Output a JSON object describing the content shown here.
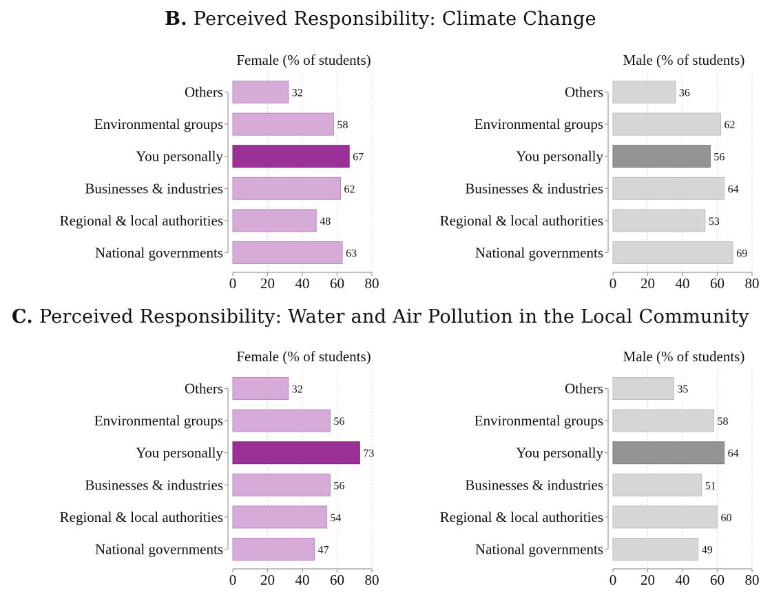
{
  "sections": [
    {
      "letter": "B.",
      "title": "Perceived Responsibility: Climate Change"
    },
    {
      "letter": "C.",
      "title": "Perceived Responsibility: Water and Air Pollution in the Local Community"
    }
  ],
  "colors": {
    "female_bar": "#d7abd8",
    "female_edge": "#bd86c0",
    "female_highlight": "#9b3197",
    "female_highlight_edge": "#7d1f7a",
    "male_bar": "#d6d6d6",
    "male_edge": "#bdbdbd",
    "male_highlight": "#949494",
    "male_highlight_edge": "#7a7a7a",
    "grid": "#d9d9d9",
    "axis": "#9a9a9a"
  },
  "chart_data": [
    {
      "type": "bar",
      "orientation": "horizontal",
      "section": "B",
      "title": "Female (% of students)",
      "group": "female",
      "categories": [
        "Others",
        "Environmental groups",
        "You personally",
        "Businesses & industries",
        "Regional & local authorities",
        "National governments"
      ],
      "values": [
        32,
        58,
        67,
        62,
        48,
        63
      ],
      "highlight_index": 2,
      "xlim": [
        0,
        80
      ],
      "xticks": [
        0,
        20,
        40,
        60,
        80
      ]
    },
    {
      "type": "bar",
      "orientation": "horizontal",
      "section": "B",
      "title": "Male (% of students)",
      "group": "male",
      "categories": [
        "Others",
        "Environmental groups",
        "You personally",
        "Businesses & industries",
        "Regional & local authorities",
        "National governments"
      ],
      "values": [
        36,
        62,
        56,
        64,
        53,
        69
      ],
      "highlight_index": 2,
      "xlim": [
        0,
        80
      ],
      "xticks": [
        0,
        20,
        40,
        60,
        80
      ]
    },
    {
      "type": "bar",
      "orientation": "horizontal",
      "section": "C",
      "title": "Female (% of students)",
      "group": "female",
      "categories": [
        "Others",
        "Environmental groups",
        "You personally",
        "Businesses & industries",
        "Regional & local authorities",
        "National governments"
      ],
      "values": [
        32,
        56,
        73,
        56,
        54,
        47
      ],
      "highlight_index": 2,
      "xlim": [
        0,
        80
      ],
      "xticks": [
        0,
        20,
        40,
        60,
        80
      ]
    },
    {
      "type": "bar",
      "orientation": "horizontal",
      "section": "C",
      "title": "Male (% of students)",
      "group": "male",
      "categories": [
        "Others",
        "Environmental groups",
        "You personally",
        "Businesses & industries",
        "Regional & local authorities",
        "National governments"
      ],
      "values": [
        35,
        58,
        64,
        51,
        60,
        49
      ],
      "highlight_index": 2,
      "xlim": [
        0,
        80
      ],
      "xticks": [
        0,
        20,
        40,
        60,
        80
      ]
    }
  ]
}
